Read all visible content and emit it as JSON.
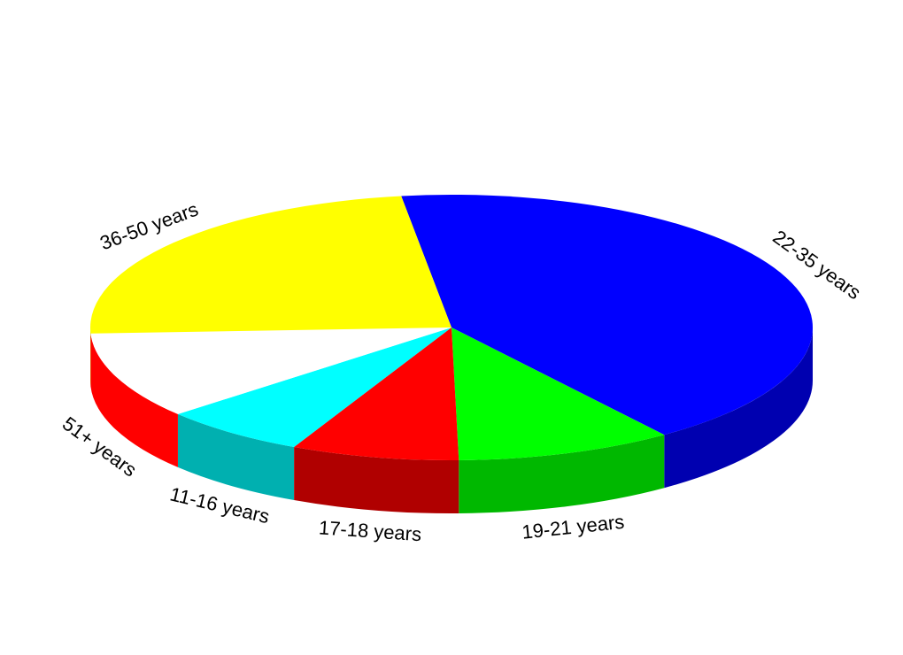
{
  "chart_data": {
    "type": "pie",
    "style": "3d",
    "title": "",
    "legend": "none",
    "slices": [
      {
        "label": "22-35 years",
        "value": 42.2,
        "color": "#0000FF",
        "side_color": "#0000B0"
      },
      {
        "label": "19-21 years",
        "value": 9.7,
        "color": "#00FF00",
        "side_color": "#00B800"
      },
      {
        "label": "17-18 years",
        "value": 7.5,
        "color": "#FF0000",
        "side_color": "#B00000"
      },
      {
        "label": "11-16 years",
        "value": 6.5,
        "color": "#00FFFF",
        "side_color": "#00B0B0"
      },
      {
        "label": "51+ years",
        "value": 10.6,
        "color": "#FFFFFF",
        "side_color": "#FF0000"
      },
      {
        "label": "36-50 years",
        "value": 23.5,
        "color": "#FFFF00",
        "side_color": "#B8B800"
      }
    ]
  }
}
